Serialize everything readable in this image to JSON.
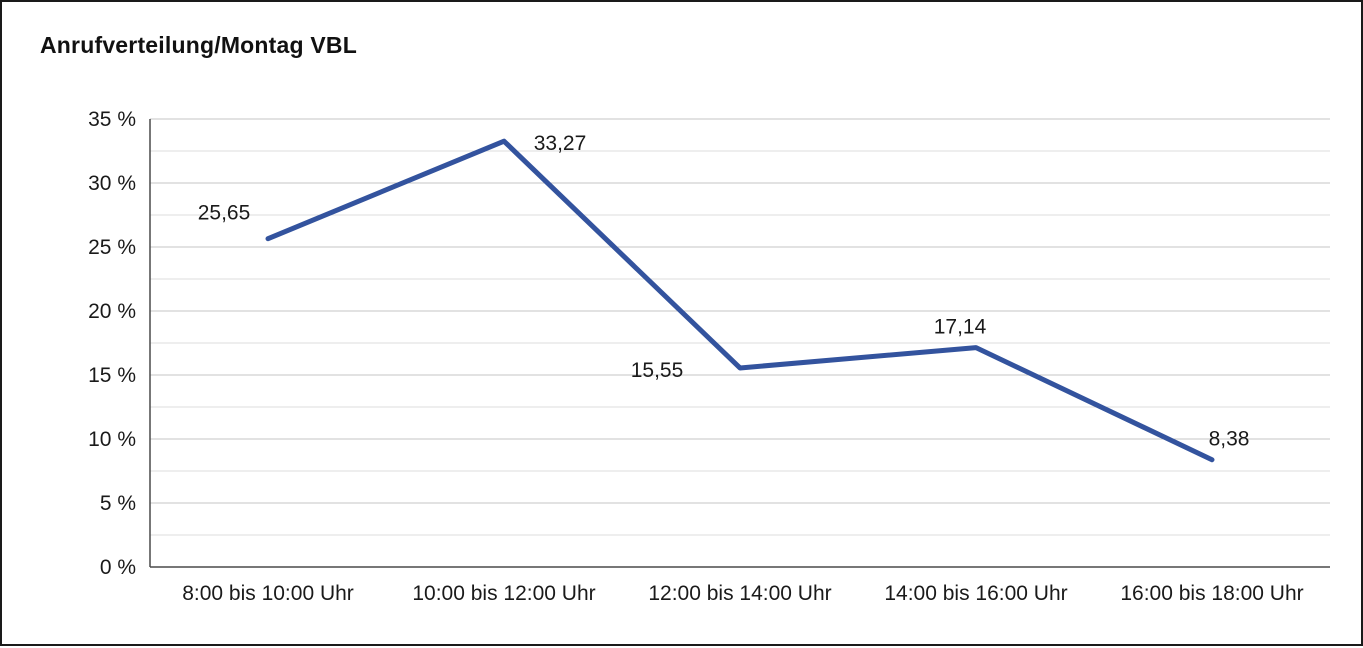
{
  "chart_data": {
    "type": "line",
    "title": "Anrufverteilung/Montag VBL",
    "categories": [
      "8:00 bis 10:00 Uhr",
      "10:00 bis 12:00 Uhr",
      "12:00 bis 14:00 Uhr",
      "14:00 bis 16:00 Uhr",
      "16:00 bis 18:00 Uhr"
    ],
    "values": [
      25.65,
      33.27,
      15.55,
      17.14,
      8.38
    ],
    "value_labels": [
      "25,65",
      "33,27",
      "15,55",
      "17,14",
      "8,38"
    ],
    "xlabel": "",
    "ylabel": "",
    "ylim": [
      0,
      35
    ],
    "y_ticks": [
      {
        "value": 0,
        "label": "0 %"
      },
      {
        "value": 5,
        "label": "5 %"
      },
      {
        "value": 10,
        "label": "10 %"
      },
      {
        "value": 15,
        "label": "15 %"
      },
      {
        "value": 20,
        "label": "20 %"
      },
      {
        "value": 25,
        "label": "25 %"
      },
      {
        "value": 30,
        "label": "30 %"
      },
      {
        "value": 35,
        "label": "35 %"
      }
    ],
    "minor_grid_step": 2.5,
    "grid": true,
    "legend": "none",
    "colors": {
      "line": "#33539e",
      "grid_major": "#c4c4c4",
      "grid_minor": "#dddddd",
      "axis": "#4a4a4a",
      "text": "#1a1a1a"
    }
  }
}
